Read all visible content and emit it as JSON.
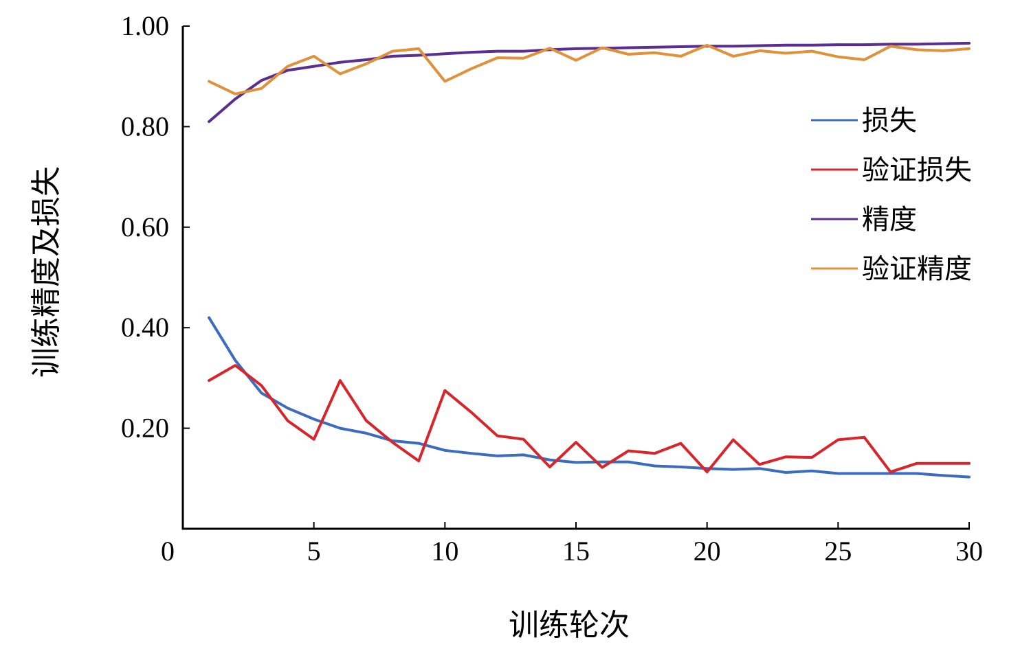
{
  "chart_data": {
    "type": "line",
    "xlabel": "训练轮次",
    "ylabel": "训练精度及损失",
    "xlim": [
      0,
      30
    ],
    "ylim": [
      0,
      1.0
    ],
    "x_ticks": [
      "0",
      "5",
      "10",
      "15",
      "20",
      "25",
      "30"
    ],
    "y_ticks": [
      "0.20",
      "0.40",
      "0.60",
      "0.80",
      "1.00"
    ],
    "grid": false,
    "legend_position": "right",
    "x": [
      1,
      2,
      3,
      4,
      5,
      6,
      7,
      8,
      9,
      10,
      11,
      12,
      13,
      14,
      15,
      16,
      17,
      18,
      19,
      20,
      21,
      22,
      23,
      24,
      25,
      26,
      27,
      28,
      29,
      30
    ],
    "series": [
      {
        "name": "损失",
        "color": "#3c6cc0",
        "values": [
          0.42,
          0.335,
          0.27,
          0.24,
          0.218,
          0.2,
          0.19,
          0.175,
          0.17,
          0.156,
          0.15,
          0.145,
          0.147,
          0.137,
          0.132,
          0.133,
          0.133,
          0.125,
          0.123,
          0.12,
          0.118,
          0.12,
          0.112,
          0.115,
          0.11,
          0.11,
          0.11,
          0.11,
          0.106,
          0.103
        ]
      },
      {
        "name": "验证损失",
        "color": "#d8252c",
        "values": [
          0.295,
          0.325,
          0.285,
          0.215,
          0.178,
          0.295,
          0.215,
          0.172,
          0.135,
          0.275,
          0.232,
          0.185,
          0.178,
          0.123,
          0.172,
          0.122,
          0.155,
          0.15,
          0.17,
          0.113,
          0.177,
          0.128,
          0.143,
          0.142,
          0.177,
          0.182,
          0.113,
          0.13,
          0.13,
          0.13
        ]
      },
      {
        "name": "精度",
        "color": "#5a2d91",
        "values": [
          0.81,
          0.855,
          0.892,
          0.912,
          0.92,
          0.928,
          0.933,
          0.94,
          0.942,
          0.945,
          0.948,
          0.95,
          0.95,
          0.953,
          0.955,
          0.956,
          0.957,
          0.958,
          0.959,
          0.96,
          0.96,
          0.961,
          0.962,
          0.962,
          0.963,
          0.963,
          0.964,
          0.964,
          0.965,
          0.966
        ]
      },
      {
        "name": "验证精度",
        "color": "#e0913a",
        "values": [
          0.89,
          0.865,
          0.876,
          0.92,
          0.94,
          0.905,
          0.925,
          0.95,
          0.955,
          0.89,
          0.915,
          0.937,
          0.936,
          0.956,
          0.932,
          0.957,
          0.944,
          0.947,
          0.94,
          0.962,
          0.94,
          0.951,
          0.946,
          0.95,
          0.939,
          0.933,
          0.96,
          0.953,
          0.951,
          0.955
        ]
      }
    ]
  }
}
